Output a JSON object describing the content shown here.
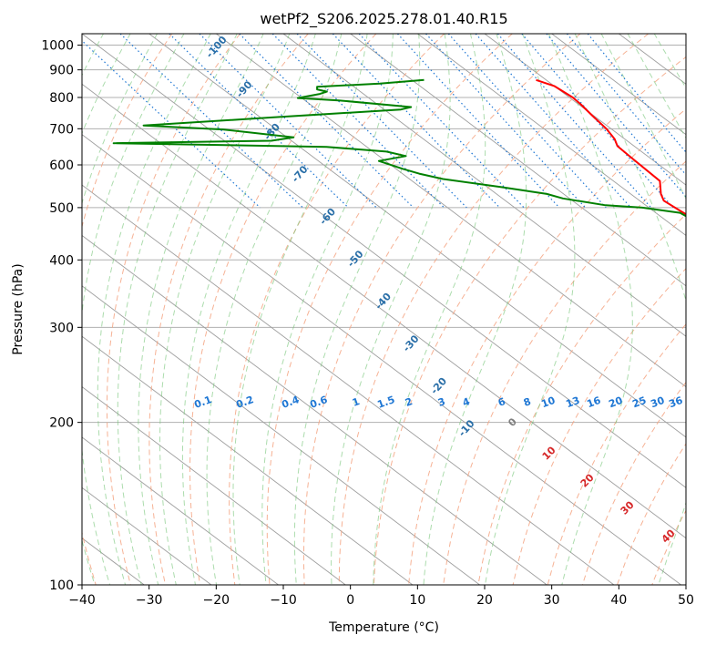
{
  "chart_data": {
    "type": "line",
    "title": "wetPf2_S206.2025.278.01.40.R15",
    "xlabel": "Temperature (°C)",
    "ylabel": "Pressure (hPa)",
    "xlim": [
      -40,
      50
    ],
    "ylim": [
      1050,
      100
    ],
    "x_ticks": [
      -40,
      -30,
      -20,
      -10,
      0,
      10,
      20,
      30,
      40,
      50
    ],
    "x_tick_labels": [
      "−40",
      "−30",
      "−20",
      "−10",
      "0",
      "10",
      "20",
      "30",
      "40",
      "50"
    ],
    "y_ticks": [
      100,
      200,
      300,
      400,
      500,
      600,
      700,
      800,
      900,
      1000
    ],
    "y_tick_labels": [
      "100",
      "200",
      "300",
      "400",
      "500",
      "600",
      "700",
      "800",
      "900",
      "1000"
    ],
    "skew_deg_per_log_decade": 107,
    "series": [
      {
        "name": "temperature",
        "color": "#ff0000",
        "points": [
          [
            18.5,
            862
          ],
          [
            20,
            840
          ],
          [
            20.5,
            800
          ],
          [
            20.3,
            775
          ],
          [
            19.8,
            740
          ],
          [
            19.3,
            700
          ],
          [
            18.5,
            670
          ],
          [
            17.5,
            650
          ],
          [
            17.3,
            620
          ],
          [
            16.9,
            560
          ],
          [
            14.5,
            530
          ],
          [
            13.6,
            515
          ],
          [
            14,
            495
          ],
          [
            14.4,
            478
          ],
          [
            14.8,
            455
          ],
          [
            13.2,
            430
          ],
          [
            12.2,
            410
          ],
          [
            11.8,
            385
          ],
          [
            11.6,
            362
          ],
          [
            10,
            330
          ],
          [
            8,
            300
          ],
          [
            5.9,
            275
          ],
          [
            4.8,
            262
          ],
          [
            0.8,
            232
          ],
          [
            -3,
            215
          ],
          [
            -5,
            200
          ],
          [
            -6,
            191
          ],
          [
            -6.8,
            184
          ],
          [
            -6,
            175
          ],
          [
            -3.8,
            167
          ],
          [
            -3.2,
            157
          ],
          [
            -2.1,
            148
          ],
          [
            0.3,
            140
          ],
          [
            4.5,
            133
          ],
          [
            7.5,
            127
          ],
          [
            13,
            117
          ],
          [
            15.7,
            109
          ],
          [
            16,
            100
          ]
        ]
      },
      {
        "name": "dewpoint",
        "color": "#008000",
        "points": [
          [
            1.8,
            862
          ],
          [
            -5.5,
            849
          ],
          [
            -15.5,
            837
          ],
          [
            -16,
            828
          ],
          [
            -15,
            820
          ],
          [
            -16.5,
            812
          ],
          [
            -20.6,
            798
          ],
          [
            -15,
            790
          ],
          [
            -5.5,
            768
          ],
          [
            -7.5,
            760
          ],
          [
            -28,
            735
          ],
          [
            -49,
            710
          ],
          [
            -38,
            698
          ],
          [
            -29,
            675
          ],
          [
            -33,
            665
          ],
          [
            -57,
            658
          ],
          [
            -26,
            648
          ],
          [
            -18,
            635
          ],
          [
            -16,
            623
          ],
          [
            -21,
            610
          ],
          [
            -19,
            590
          ],
          [
            -17.5,
            578
          ],
          [
            -15,
            565
          ],
          [
            -8,
            546
          ],
          [
            -2.5,
            530
          ],
          [
            -1,
            520
          ],
          [
            4,
            505
          ],
          [
            9,
            500
          ],
          [
            13.6,
            489
          ],
          [
            14.6,
            460
          ],
          [
            12,
            440
          ],
          [
            11.5,
            415
          ],
          [
            11.4,
            400
          ],
          [
            10.7,
            380
          ],
          [
            8,
            335
          ],
          [
            6,
            300
          ],
          [
            5.2,
            280
          ],
          [
            2.4,
            260
          ],
          [
            -0.5,
            248
          ],
          [
            -2.6,
            233
          ],
          [
            -2.4,
            222
          ],
          [
            -4.5,
            208
          ],
          [
            -6.5,
            195
          ],
          [
            -7.1,
            189
          ],
          [
            -6.6,
            180
          ],
          [
            -7.5,
            170
          ],
          [
            -8,
            158
          ],
          [
            -7.4,
            148
          ],
          [
            -8.6,
            140
          ],
          [
            -8.9,
            135
          ],
          [
            -8,
            128
          ],
          [
            -6.4,
            119
          ],
          [
            -4.7,
            110
          ],
          [
            -1.5,
            100
          ]
        ]
      }
    ],
    "dry_adiabat_labels": [
      "-100",
      "-90",
      "-80",
      "-70",
      "-60",
      "-50",
      "-40",
      "-30",
      "-20",
      "-10"
    ],
    "moist_adiabat_labels": [
      "0",
      "10",
      "20",
      "30",
      "40"
    ],
    "mixing_ratio_labels": [
      "0.1",
      "0.2",
      "0.4",
      "0.6",
      "1",
      "1.5",
      "2",
      "3",
      "4",
      "6",
      "8",
      "10",
      "13",
      "16",
      "20",
      "25",
      "30",
      "36"
    ],
    "mixing_ratio_values": [
      0.1,
      0.2,
      0.4,
      0.6,
      1,
      1.5,
      2,
      3,
      4,
      6,
      8,
      10,
      13,
      16,
      20,
      25,
      30,
      36
    ],
    "colors": {
      "grid": "#b0b0b0",
      "isotherm": "#9e9e9e",
      "dry_adiabat": "#f4a582",
      "moist_adiabat": "#74c476",
      "mixing_ratio": "#1f77d4",
      "dry_label": "#2a6fa8",
      "moist_label": "#d62728",
      "zero_label": "#7f7f7f"
    }
  }
}
